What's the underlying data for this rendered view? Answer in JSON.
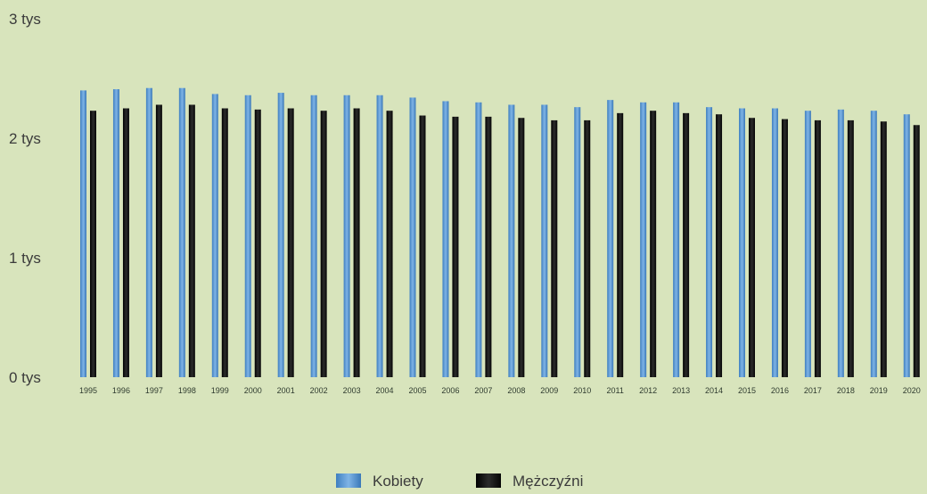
{
  "chart_data": {
    "type": "bar",
    "categories": [
      "1995",
      "1996",
      "1997",
      "1998",
      "1999",
      "2000",
      "2001",
      "2002",
      "2003",
      "2004",
      "2005",
      "2006",
      "2007",
      "2008",
      "2009",
      "2010",
      "2011",
      "2012",
      "2013",
      "2014",
      "2015",
      "2016",
      "2017",
      "2018",
      "2019",
      "2020"
    ],
    "series": [
      {
        "name": "Kobiety",
        "color": "#5b9bd5",
        "values": [
          2400,
          2410,
          2420,
          2420,
          2370,
          2360,
          2380,
          2360,
          2360,
          2360,
          2340,
          2310,
          2300,
          2280,
          2280,
          2260,
          2320,
          2300,
          2300,
          2260,
          2250,
          2250,
          2230,
          2240,
          2230,
          2200
        ]
      },
      {
        "name": "Mężczyźni",
        "color": "#151515",
        "values": [
          2230,
          2250,
          2280,
          2280,
          2250,
          2240,
          2250,
          2230,
          2250,
          2230,
          2190,
          2180,
          2180,
          2170,
          2150,
          2150,
          2210,
          2230,
          2210,
          2200,
          2170,
          2160,
          2150,
          2150,
          2140,
          2110
        ]
      }
    ],
    "yticks": [
      {
        "value": 0,
        "label": "0 tys"
      },
      {
        "value": 1000,
        "label": "1 tys"
      },
      {
        "value": 2000,
        "label": "2 tys"
      },
      {
        "value": 3000,
        "label": "3 tys"
      }
    ],
    "ylim": [
      0,
      3000
    ],
    "grid": false,
    "legend_position": "bottom-center",
    "background": "#d8e4bc"
  }
}
